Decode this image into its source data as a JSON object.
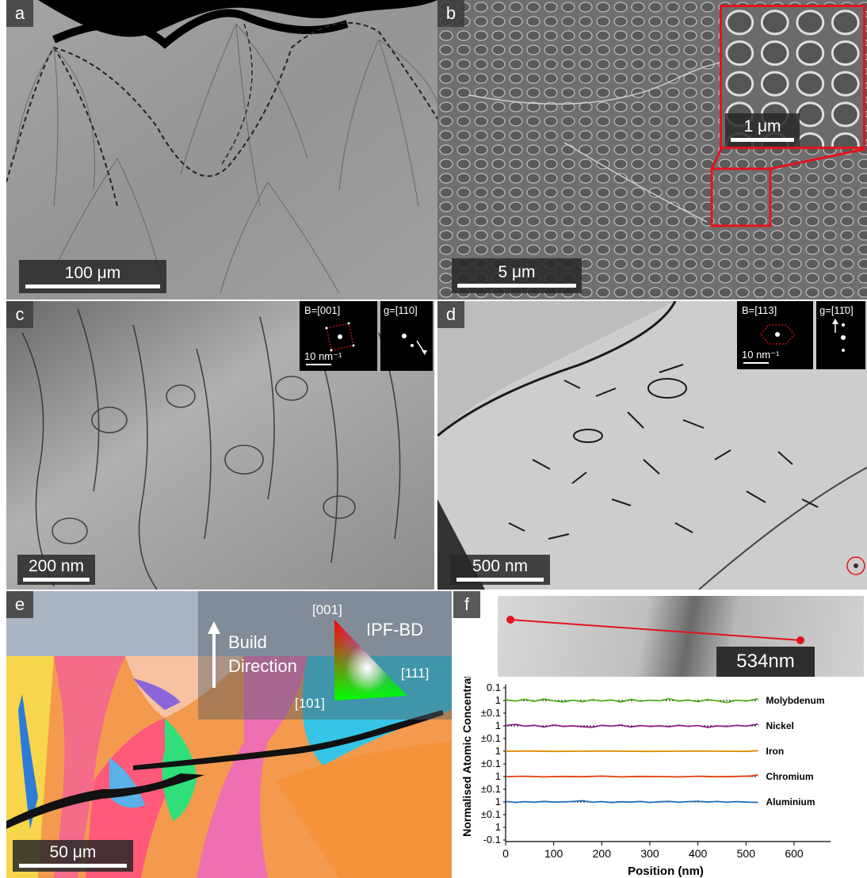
{
  "panels": {
    "a": {
      "label": "a",
      "scale": "100 μm"
    },
    "b": {
      "label": "b",
      "scale": "5 μm",
      "inset_scale": "1 μm"
    },
    "c": {
      "label": "c",
      "scale": "200 nm",
      "inset_zone": "B=[001]",
      "inset_g": "g=[110]",
      "inset_recip": "10 nm⁻¹"
    },
    "d": {
      "label": "d",
      "scale": "500 nm",
      "inset_zone": "B=[113]",
      "inset_g": "g=[11̄0]",
      "inset_recip": "10 nm⁻¹"
    },
    "e": {
      "label": "e",
      "scale": "50 μm",
      "build_line1": "Build",
      "build_line2": "Direction",
      "ipf_title": "IPF-BD",
      "pole_001": "[001]",
      "pole_111": "[111]",
      "pole_101": "[101]"
    },
    "f": {
      "label": "f",
      "line_length": "534nm"
    }
  },
  "chart_data": {
    "type": "line",
    "ylabel": "Normalised Atomic Concentration",
    "xlabel": "Position (nm)",
    "xlim": [
      0,
      600
    ],
    "x_ticks": [
      "0",
      "100",
      "200",
      "300",
      "400",
      "500",
      "600"
    ],
    "y_tick_labels": [
      "0.1",
      "1",
      "±0.1",
      "1",
      "±0.1",
      "1",
      "±0.1",
      "1",
      "±0.1",
      "1",
      "±0.1",
      "1",
      "-0.1"
    ],
    "grid": false,
    "series": [
      {
        "name": "Molybdenum",
        "color": "#4caf1e",
        "baseline": 1,
        "amplitude": 0.12,
        "x": [
          0,
          20,
          40,
          60,
          80,
          100,
          120,
          140,
          160,
          180,
          200,
          220,
          240,
          260,
          280,
          300,
          320,
          340,
          360,
          380,
          400,
          420,
          440,
          460,
          480,
          500,
          525
        ],
        "values": [
          1.05,
          0.96,
          1.08,
          0.94,
          1.1,
          0.98,
          0.9,
          1.02,
          0.92,
          1.06,
          0.97,
          1.04,
          0.9,
          1.08,
          0.95,
          1.02,
          0.98,
          1.12,
          0.96,
          1.04,
          0.92,
          1.06,
          0.98,
          0.86,
          1.02,
          0.96,
          1.12
        ]
      },
      {
        "name": "Nickel",
        "color": "#8b1e8b",
        "baseline": 1,
        "amplitude": 0.12,
        "x": [
          0,
          20,
          40,
          60,
          80,
          100,
          120,
          140,
          160,
          180,
          200,
          220,
          240,
          260,
          280,
          300,
          320,
          340,
          360,
          380,
          400,
          420,
          440,
          460,
          480,
          500,
          525
        ],
        "values": [
          1.02,
          1.1,
          0.98,
          1.04,
          0.92,
          1.06,
          0.96,
          1.0,
          0.94,
          0.9,
          1.04,
          0.98,
          1.06,
          0.92,
          1.02,
          0.96,
          1.0,
          0.94,
          1.04,
          0.97,
          1.02,
          0.9,
          1.0,
          0.95,
          1.03,
          0.98,
          1.12
        ]
      },
      {
        "name": "Iron",
        "color": "#e08a00",
        "baseline": 1,
        "amplitude": 0.12,
        "x": [
          0,
          50,
          100,
          150,
          200,
          250,
          300,
          350,
          400,
          450,
          500,
          525
        ],
        "values": [
          1.0,
          1.01,
          0.99,
          1.0,
          1.01,
          1.0,
          0.99,
          1.0,
          1.01,
          1.0,
          0.99,
          1.03
        ]
      },
      {
        "name": "Chromium",
        "color": "#e04010",
        "baseline": 1,
        "amplitude": 0.12,
        "x": [
          0,
          40,
          80,
          120,
          160,
          200,
          240,
          280,
          320,
          360,
          400,
          440,
          480,
          510,
          525
        ],
        "values": [
          1.0,
          1.02,
          0.98,
          1.01,
          0.99,
          1.03,
          0.98,
          1.01,
          1.0,
          0.98,
          1.02,
          0.99,
          1.01,
          1.04,
          1.12
        ]
      },
      {
        "name": "Aluminium",
        "color": "#1f6fb8",
        "baseline": 1,
        "amplitude": 0.12,
        "x": [
          0,
          20,
          40,
          60,
          80,
          100,
          120,
          140,
          160,
          180,
          200,
          220,
          240,
          260,
          280,
          300,
          320,
          340,
          360,
          380,
          400,
          420,
          440,
          460,
          480,
          500,
          525
        ],
        "values": [
          1.03,
          0.97,
          1.02,
          0.98,
          1.04,
          0.99,
          1.0,
          1.03,
          1.08,
          0.98,
          1.02,
          0.96,
          1.01,
          0.99,
          1.03,
          0.97,
          1.01,
          1.04,
          0.98,
          1.02,
          1.05,
          0.99,
          1.03,
          0.98,
          1.02,
          0.99,
          0.97
        ]
      }
    ]
  },
  "colors": {
    "accent_red": "#e3141c"
  }
}
